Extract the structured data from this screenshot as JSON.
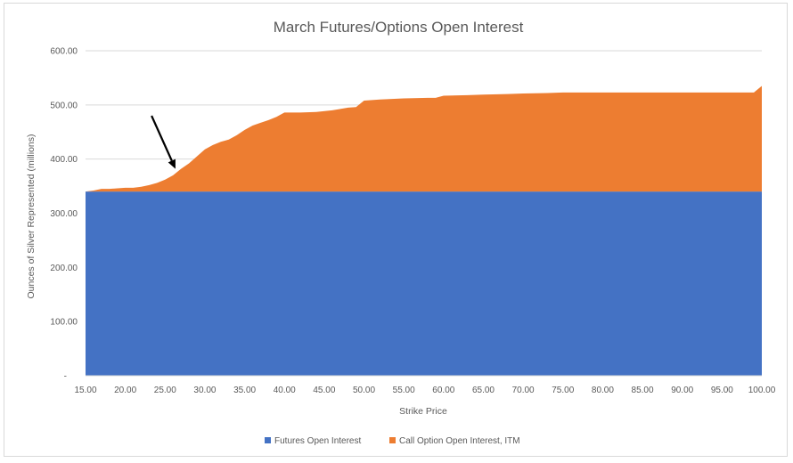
{
  "chart_data": {
    "type": "area",
    "stacked": true,
    "title": "March Futures/Options Open Interest",
    "xlabel": "Strike Price",
    "ylabel": "Ounces of Silver Represented (millions)",
    "xlim": [
      15,
      100
    ],
    "ylim": [
      0,
      600
    ],
    "x_ticks": [
      "15.00",
      "20.00",
      "25.00",
      "30.00",
      "35.00",
      "40.00",
      "45.00",
      "50.00",
      "55.00",
      "60.00",
      "65.00",
      "70.00",
      "75.00",
      "80.00",
      "85.00",
      "90.00",
      "95.00",
      "100.00"
    ],
    "y_ticks": [
      "-",
      "100.00",
      "200.00",
      "300.00",
      "400.00",
      "500.00",
      "600.00"
    ],
    "grid": true,
    "legend_position": "bottom",
    "series": [
      {
        "name": "Futures Open Interest",
        "color": "#4472c4",
        "points": [
          [
            15,
            340
          ],
          [
            100,
            340
          ]
        ]
      },
      {
        "name": "Call Option Open Interest, ITM",
        "color": "#ed7d31",
        "points": [
          [
            15,
            0
          ],
          [
            16,
            2
          ],
          [
            17,
            5
          ],
          [
            18,
            5
          ],
          [
            19,
            6
          ],
          [
            20,
            7
          ],
          [
            21,
            7
          ],
          [
            22,
            9
          ],
          [
            23,
            12
          ],
          [
            24,
            16
          ],
          [
            25,
            22
          ],
          [
            26,
            30
          ],
          [
            27,
            42
          ],
          [
            28,
            52
          ],
          [
            29,
            65
          ],
          [
            30,
            78
          ],
          [
            31,
            86
          ],
          [
            32,
            92
          ],
          [
            33,
            96
          ],
          [
            34,
            104
          ],
          [
            35,
            114
          ],
          [
            36,
            122
          ],
          [
            37,
            127
          ],
          [
            38,
            132
          ],
          [
            39,
            138
          ],
          [
            40,
            146
          ],
          [
            42,
            146
          ],
          [
            44,
            147
          ],
          [
            46,
            150
          ],
          [
            48,
            155
          ],
          [
            49,
            156
          ],
          [
            50,
            168
          ],
          [
            52,
            170
          ],
          [
            55,
            172
          ],
          [
            58,
            173
          ],
          [
            59,
            173
          ],
          [
            60,
            177
          ],
          [
            63,
            178
          ],
          [
            65,
            179
          ],
          [
            68,
            180
          ],
          [
            70,
            181
          ],
          [
            73,
            182
          ],
          [
            75,
            183
          ],
          [
            80,
            183
          ],
          [
            85,
            183
          ],
          [
            90,
            183
          ],
          [
            95,
            183
          ],
          [
            99,
            183
          ],
          [
            100,
            195
          ]
        ]
      }
    ],
    "annotations": [
      {
        "type": "arrow",
        "from": [
          23.3,
          480
        ],
        "to": [
          26.3,
          382
        ]
      }
    ]
  }
}
